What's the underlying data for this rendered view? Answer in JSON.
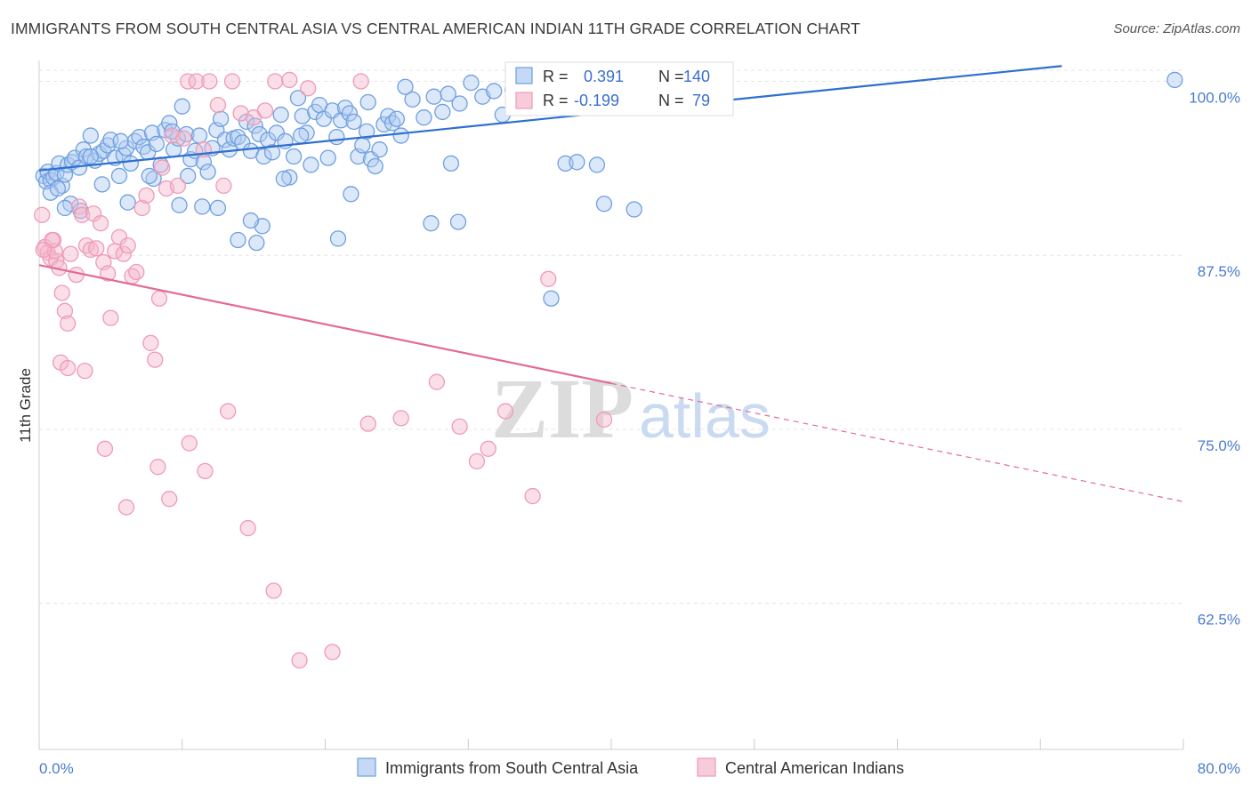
{
  "header": {
    "title": "IMMIGRANTS FROM SOUTH CENTRAL ASIA VS CENTRAL AMERICAN INDIAN 11TH GRADE CORRELATION CHART",
    "source": "Source: ZipAtlas.com"
  },
  "watermark": {
    "zip": "ZIP",
    "atlas": "atlas"
  },
  "stats": {
    "r_label": "R =",
    "n_label": "N =",
    "rows": [
      {
        "r": "0.391",
        "n": "140",
        "color": "#6f9fe0"
      },
      {
        "r": "-0.199",
        "n": "79",
        "color": "#ef9bb6"
      }
    ]
  },
  "chart_data": {
    "type": "scatter",
    "title": "IMMIGRANTS FROM SOUTH CENTRAL ASIA VS CENTRAL AMERICAN INDIAN 11TH GRADE CORRELATION CHART",
    "xlabel": "",
    "ylabel": "11th Grade",
    "xlim": [
      0,
      80
    ],
    "ylim": [
      52,
      101.5
    ],
    "x_tick_labels": [
      "0.0%",
      "80.0%"
    ],
    "y_ticks": [
      62.5,
      75.0,
      87.5,
      100.0
    ],
    "y_tick_labels": [
      "62.5%",
      "75.0%",
      "87.5%",
      "100.0%"
    ],
    "grid": true,
    "legend_position": "bottom-center",
    "series": [
      {
        "name": "Immigrants from South Central Asia",
        "color": "#6f9fe0",
        "trend": {
          "x": [
            0,
            71.5
          ],
          "y": [
            93.6,
            101.1
          ],
          "dashed_to": null,
          "line_color": "#2f6fd0"
        },
        "points": [
          [
            0.3,
            93.2
          ],
          [
            0.5,
            92.8
          ],
          [
            0.6,
            93.5
          ],
          [
            0.8,
            92.9
          ],
          [
            1.0,
            93.1
          ],
          [
            1.2,
            93.4
          ],
          [
            1.4,
            94.1
          ],
          [
            1.6,
            92.5
          ],
          [
            1.8,
            93.3
          ],
          [
            2.0,
            94.0
          ],
          [
            2.3,
            94.2
          ],
          [
            2.5,
            94.5
          ],
          [
            2.8,
            93.8
          ],
          [
            3.1,
            95.1
          ],
          [
            3.3,
            94.6
          ],
          [
            3.6,
            96.1
          ],
          [
            3.9,
            94.3
          ],
          [
            4.2,
            94.8
          ],
          [
            4.5,
            95.0
          ],
          [
            4.8,
            95.4
          ],
          [
            5.0,
            95.8
          ],
          [
            5.3,
            94.5
          ],
          [
            5.6,
            93.2
          ],
          [
            5.9,
            94.7
          ],
          [
            6.1,
            95.2
          ],
          [
            6.4,
            94.1
          ],
          [
            6.7,
            95.7
          ],
          [
            7.0,
            96.0
          ],
          [
            7.3,
            95.3
          ],
          [
            7.6,
            94.9
          ],
          [
            7.9,
            96.3
          ],
          [
            8.2,
            95.5
          ],
          [
            8.5,
            94.0
          ],
          [
            8.8,
            96.5
          ],
          [
            9.1,
            97.0
          ],
          [
            9.4,
            95.1
          ],
          [
            9.7,
            95.9
          ],
          [
            10.0,
            98.2
          ],
          [
            10.3,
            96.2
          ],
          [
            10.6,
            94.4
          ],
          [
            10.9,
            95.0
          ],
          [
            11.2,
            96.1
          ],
          [
            11.5,
            94.2
          ],
          [
            11.8,
            93.5
          ],
          [
            12.1,
            95.2
          ],
          [
            12.4,
            96.5
          ],
          [
            12.7,
            97.3
          ],
          [
            13.0,
            95.8
          ],
          [
            13.3,
            95.1
          ],
          [
            13.6,
            95.9
          ],
          [
            13.9,
            96.0
          ],
          [
            14.2,
            95.6
          ],
          [
            14.5,
            97.1
          ],
          [
            14.8,
            95.0
          ],
          [
            15.1,
            96.8
          ],
          [
            15.4,
            96.2
          ],
          [
            15.7,
            94.6
          ],
          [
            16.0,
            95.8
          ],
          [
            16.3,
            94.9
          ],
          [
            16.6,
            96.3
          ],
          [
            16.9,
            97.6
          ],
          [
            17.2,
            95.7
          ],
          [
            17.5,
            93.1
          ],
          [
            17.8,
            94.6
          ],
          [
            18.1,
            98.8
          ],
          [
            18.4,
            97.5
          ],
          [
            18.7,
            96.3
          ],
          [
            19.0,
            94.0
          ],
          [
            19.3,
            97.8
          ],
          [
            19.6,
            98.3
          ],
          [
            19.9,
            97.3
          ],
          [
            20.2,
            94.5
          ],
          [
            20.5,
            97.9
          ],
          [
            20.8,
            96.0
          ],
          [
            21.1,
            97.2
          ],
          [
            21.4,
            98.1
          ],
          [
            21.7,
            97.7
          ],
          [
            22.0,
            97.1
          ],
          [
            22.3,
            94.6
          ],
          [
            22.6,
            95.4
          ],
          [
            22.9,
            96.4
          ],
          [
            23.2,
            94.4
          ],
          [
            23.5,
            93.9
          ],
          [
            23.8,
            95.1
          ],
          [
            24.1,
            96.9
          ],
          [
            24.4,
            97.5
          ],
          [
            24.7,
            97.0
          ],
          [
            25.0,
            97.3
          ],
          [
            25.3,
            96.1
          ],
          [
            25.6,
            99.6
          ],
          [
            26.1,
            98.7
          ],
          [
            26.9,
            97.4
          ],
          [
            27.6,
            98.9
          ],
          [
            28.2,
            97.8
          ],
          [
            28.6,
            99.1
          ],
          [
            29.4,
            98.4
          ],
          [
            30.2,
            99.9
          ],
          [
            31.0,
            98.9
          ],
          [
            31.8,
            99.3
          ],
          [
            32.4,
            97.6
          ],
          [
            33.1,
            99.4
          ],
          [
            34.2,
            99.8
          ],
          [
            35.0,
            98.9
          ],
          [
            36.3,
            99.6
          ],
          [
            37.5,
            99.1
          ],
          [
            23.0,
            98.5
          ],
          [
            27.4,
            89.8
          ],
          [
            20.9,
            88.7
          ],
          [
            15.6,
            89.6
          ],
          [
            12.5,
            90.9
          ],
          [
            14.8,
            90.0
          ],
          [
            9.8,
            91.1
          ],
          [
            11.4,
            91.0
          ],
          [
            9.3,
            96.4
          ],
          [
            10.4,
            93.2
          ],
          [
            8.0,
            93.0
          ],
          [
            7.7,
            93.2
          ],
          [
            13.9,
            88.6
          ],
          [
            15.2,
            88.4
          ],
          [
            17.1,
            93.0
          ],
          [
            18.3,
            96.1
          ],
          [
            21.8,
            91.9
          ],
          [
            28.8,
            94.1
          ],
          [
            29.3,
            89.9
          ],
          [
            36.8,
            94.1
          ],
          [
            37.6,
            94.2
          ],
          [
            39.0,
            94.0
          ],
          [
            39.5,
            91.2
          ],
          [
            41.6,
            90.8
          ],
          [
            35.8,
            84.4
          ],
          [
            2.2,
            91.2
          ],
          [
            1.8,
            90.9
          ],
          [
            2.9,
            90.7
          ],
          [
            0.8,
            92.0
          ],
          [
            1.3,
            92.3
          ],
          [
            3.6,
            94.6
          ],
          [
            4.4,
            92.6
          ],
          [
            6.2,
            91.3
          ],
          [
            5.7,
            95.7
          ],
          [
            79.4,
            100.1
          ]
        ]
      },
      {
        "name": "Central American Indians",
        "color": "#ef9bb6",
        "trend": {
          "x": [
            0,
            40
          ],
          "y": [
            86.8,
            78.3
          ],
          "dashed_to": [
            80,
            69.8
          ],
          "line_color": "#e46a95"
        },
        "points": [
          [
            0.2,
            90.4
          ],
          [
            0.4,
            88.1
          ],
          [
            0.6,
            87.7
          ],
          [
            0.8,
            87.3
          ],
          [
            1.0,
            88.6
          ],
          [
            1.2,
            87.1
          ],
          [
            1.4,
            86.6
          ],
          [
            1.6,
            84.8
          ],
          [
            1.8,
            83.5
          ],
          [
            2.0,
            82.6
          ],
          [
            2.2,
            87.6
          ],
          [
            2.6,
            86.1
          ],
          [
            2.8,
            91.0
          ],
          [
            3.0,
            90.4
          ],
          [
            3.3,
            88.2
          ],
          [
            3.6,
            87.9
          ],
          [
            3.8,
            90.5
          ],
          [
            4.0,
            88.0
          ],
          [
            4.3,
            89.8
          ],
          [
            4.5,
            87.0
          ],
          [
            4.8,
            86.2
          ],
          [
            5.0,
            83.0
          ],
          [
            5.3,
            87.8
          ],
          [
            5.6,
            88.8
          ],
          [
            5.9,
            87.6
          ],
          [
            6.2,
            88.2
          ],
          [
            6.5,
            86.0
          ],
          [
            6.8,
            86.3
          ],
          [
            7.2,
            90.9
          ],
          [
            7.5,
            91.8
          ],
          [
            7.8,
            81.2
          ],
          [
            8.1,
            80.0
          ],
          [
            8.4,
            84.4
          ],
          [
            8.6,
            93.8
          ],
          [
            8.9,
            92.3
          ],
          [
            9.3,
            96.1
          ],
          [
            9.7,
            92.5
          ],
          [
            10.1,
            95.9
          ],
          [
            10.4,
            100.0
          ],
          [
            11.0,
            100.0
          ],
          [
            11.5,
            95.1
          ],
          [
            11.9,
            100.0
          ],
          [
            12.5,
            98.3
          ],
          [
            12.9,
            92.5
          ],
          [
            13.5,
            100.0
          ],
          [
            14.1,
            97.7
          ],
          [
            15.0,
            97.4
          ],
          [
            15.8,
            97.9
          ],
          [
            16.5,
            100.0
          ],
          [
            17.5,
            100.1
          ],
          [
            18.8,
            99.5
          ],
          [
            22.5,
            100.0
          ],
          [
            1.5,
            79.8
          ],
          [
            2.0,
            79.4
          ],
          [
            3.2,
            79.2
          ],
          [
            4.6,
            73.6
          ],
          [
            6.1,
            69.4
          ],
          [
            8.3,
            72.3
          ],
          [
            9.1,
            70.0
          ],
          [
            10.5,
            74.0
          ],
          [
            11.6,
            72.0
          ],
          [
            13.2,
            76.3
          ],
          [
            14.6,
            67.9
          ],
          [
            16.4,
            63.4
          ],
          [
            18.2,
            58.4
          ],
          [
            20.5,
            59.0
          ],
          [
            23.0,
            75.4
          ],
          [
            25.3,
            75.8
          ],
          [
            27.8,
            78.4
          ],
          [
            29.4,
            75.2
          ],
          [
            30.6,
            72.7
          ],
          [
            31.4,
            73.6
          ],
          [
            32.6,
            76.3
          ],
          [
            34.5,
            70.2
          ],
          [
            35.6,
            85.8
          ],
          [
            39.5,
            75.7
          ],
          [
            1.1,
            87.8
          ],
          [
            0.9,
            88.6
          ],
          [
            0.3,
            87.9
          ]
        ]
      }
    ]
  }
}
